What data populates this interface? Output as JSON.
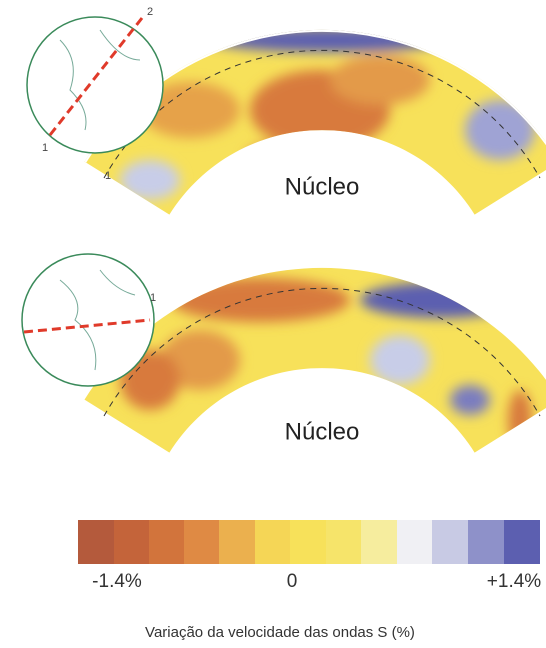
{
  "panels": [
    {
      "core_label": "Núcleo",
      "globe_labels": [
        "2",
        "1",
        "1"
      ]
    },
    {
      "core_label": "Núcleo",
      "globe_labels": [
        "1"
      ]
    }
  ],
  "colorbar": {
    "labels": [
      "-1.4%",
      "0",
      "+1.4%"
    ],
    "caption": "Variação da velocidade das ondas S (%)"
  }
}
